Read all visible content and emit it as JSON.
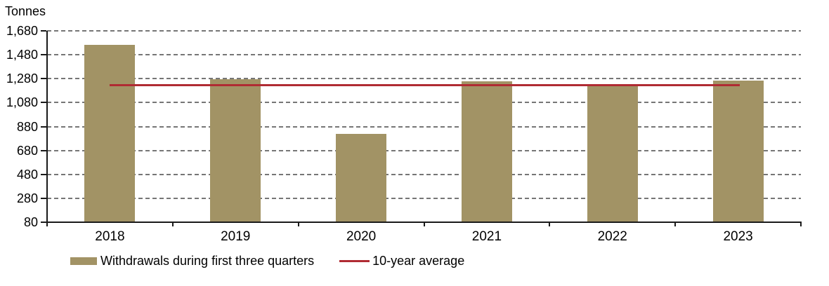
{
  "chart_data": {
    "type": "bar",
    "title": "",
    "unit_label": "Tonnes",
    "categories": [
      "2018",
      "2019",
      "2020",
      "2021",
      "2022",
      "2023"
    ],
    "series": [
      {
        "name": "Withdrawals during first three quarters",
        "type": "bar",
        "color": "#A29365",
        "values": [
          1560,
          1273,
          819,
          1258,
          1218,
          1266
        ]
      },
      {
        "name": "10-year average",
        "type": "line",
        "color": "#B02B33",
        "values": [
          1224,
          1224,
          1224,
          1224,
          1224,
          1224
        ]
      }
    ],
    "ylim": [
      80,
      1680
    ],
    "yticks": [
      {
        "label": "1,680",
        "value": 1680
      },
      {
        "label": "1,480",
        "value": 1480
      },
      {
        "label": "1,280",
        "value": 1280
      },
      {
        "label": "1,080",
        "value": 1080
      },
      {
        "label": "880",
        "value": 880
      },
      {
        "label": "680",
        "value": 680
      },
      {
        "label": "480",
        "value": 480
      },
      {
        "label": "280",
        "value": 280
      },
      {
        "label": "80",
        "value": 80
      }
    ],
    "grid": "horizontal-dashed",
    "legend_position": "bottom",
    "axis_color": "#1a1a1a",
    "gridline_color": "#767676"
  }
}
